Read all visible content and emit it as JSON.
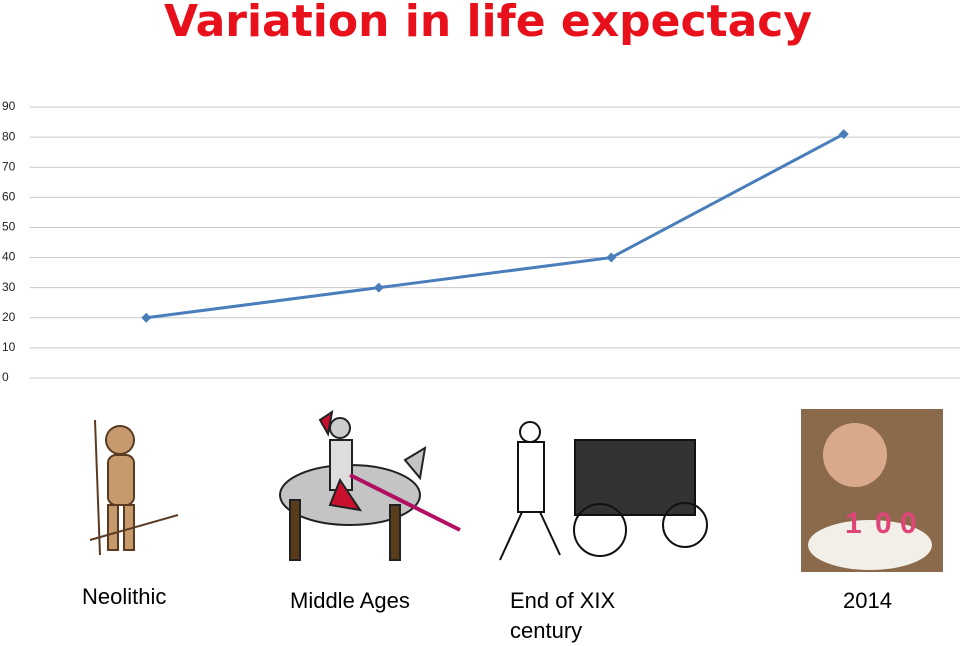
{
  "chart_data": {
    "type": "line",
    "title": "Variation in life expectacy",
    "categories": [
      "Neolithic",
      "Middle Ages",
      "End of XIX century",
      "2014"
    ],
    "values": [
      20,
      30,
      40,
      81
    ],
    "color": "#4a7ebb",
    "ylim": [
      0,
      90
    ],
    "yticks": [
      0,
      10,
      20,
      30,
      40,
      50,
      60,
      70,
      80,
      90
    ],
    "grid": true
  }
}
